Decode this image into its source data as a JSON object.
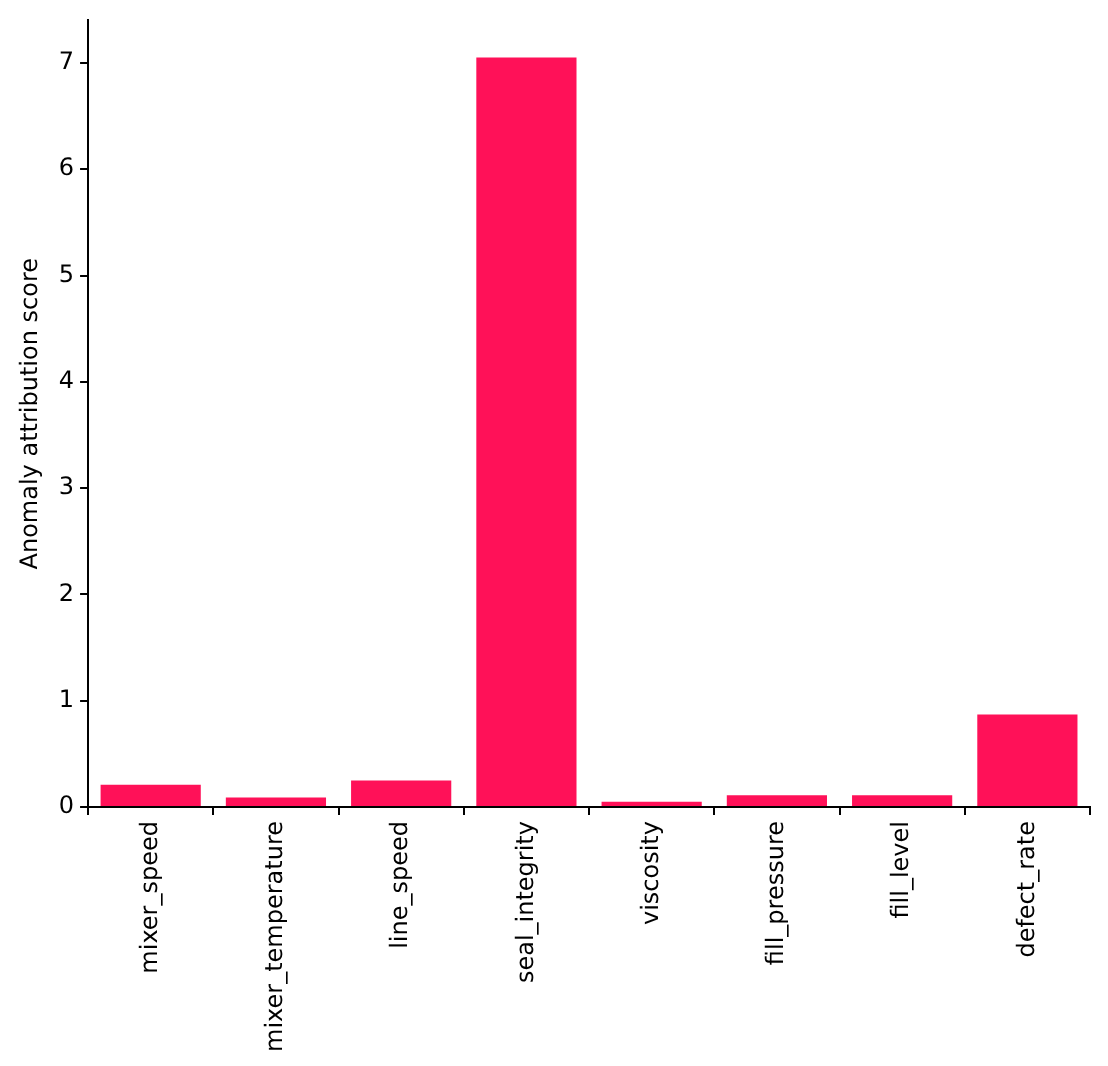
{
  "chart_data": {
    "type": "bar",
    "ylabel": "Anomaly attribution score",
    "categories": [
      "mixer_speed",
      "mixer_temperature",
      "line_speed",
      "seal_integrity",
      "viscosity",
      "fill_pressure",
      "fill_level",
      "defect_rate"
    ],
    "values": [
      0.21,
      0.09,
      0.25,
      7.05,
      0.05,
      0.11,
      0.11,
      0.87
    ],
    "color": "#ff1158",
    "ylim": [
      0,
      7.4
    ],
    "yticks": [
      0,
      1,
      2,
      3,
      4,
      5,
      6,
      7
    ],
    "grid": false
  }
}
